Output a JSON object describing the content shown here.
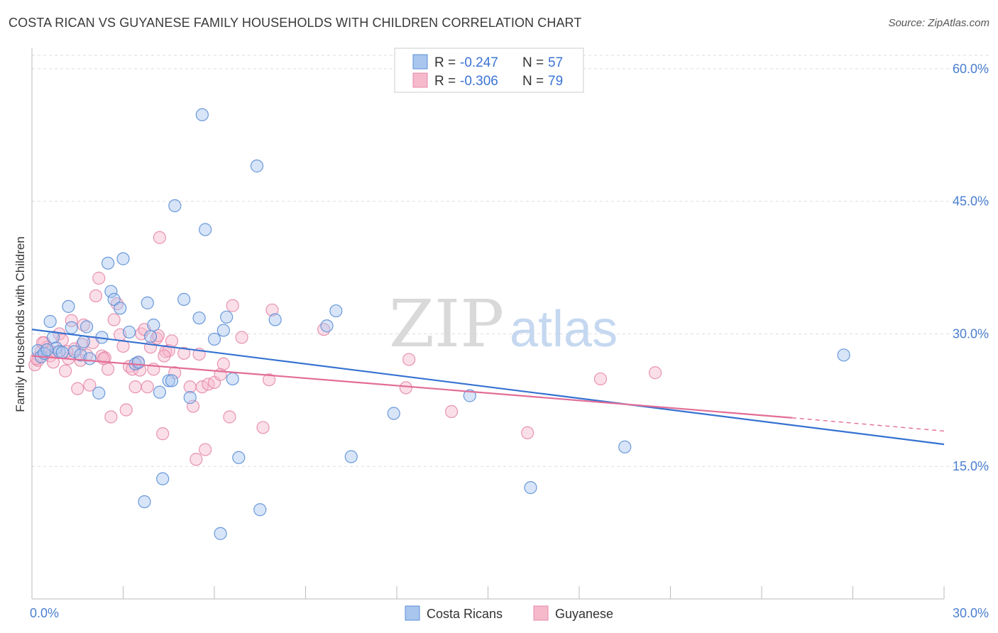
{
  "title": "COSTA RICAN VS GUYANESE FAMILY HOUSEHOLDS WITH CHILDREN CORRELATION CHART",
  "source": "Source: ZipAtlas.com",
  "watermark": {
    "zip": "ZIP",
    "atlas": "atlas"
  },
  "colors": {
    "blue_fill": "#a9c6ef",
    "blue_stroke": "#5b8fd6",
    "blue_line": "#3572d1",
    "pink_fill": "#f6b9cc",
    "pink_stroke": "#e48aa8",
    "pink_line": "#e26d96",
    "grid": "#dddddd",
    "tick_label": "#4a7fd0"
  },
  "legend": {
    "rows": [
      {
        "r_label": "R = ",
        "r_value": "-0.247",
        "n_label": "N = ",
        "n_value": "57"
      },
      {
        "r_label": "R = ",
        "r_value": "-0.306",
        "n_label": "N = ",
        "n_value": "79"
      }
    ]
  },
  "chart_data": {
    "type": "scatter",
    "xlabel": "",
    "ylabel": "Family Households with Children",
    "xlim": [
      0,
      30
    ],
    "ylim": [
      0,
      62
    ],
    "x_tick_labels": [
      "0.0%",
      "30.0%"
    ],
    "y_ticks": [
      15,
      30,
      45,
      60
    ],
    "y_tick_labels": [
      "15.0%",
      "30.0%",
      "45.0%",
      "60.0%"
    ],
    "grid": "horizontal dashed",
    "legend_placement": "top-center",
    "series": [
      {
        "name": "Costa Ricans",
        "points": [
          [
            0.2,
            28.1
          ],
          [
            0.3,
            27.4
          ],
          [
            0.4,
            27.8
          ],
          [
            0.6,
            31.4
          ],
          [
            0.7,
            29.6
          ],
          [
            0.8,
            28.4
          ],
          [
            0.9,
            28.0
          ],
          [
            1.2,
            33.1
          ],
          [
            1.3,
            30.7
          ],
          [
            1.4,
            28.0
          ],
          [
            1.6,
            27.6
          ],
          [
            1.7,
            29.1
          ],
          [
            1.8,
            30.8
          ],
          [
            1.9,
            27.2
          ],
          [
            2.2,
            23.3
          ],
          [
            2.3,
            29.6
          ],
          [
            2.5,
            38.0
          ],
          [
            2.6,
            34.8
          ],
          [
            2.7,
            33.9
          ],
          [
            2.9,
            32.9
          ],
          [
            3.0,
            38.5
          ],
          [
            3.2,
            30.2
          ],
          [
            3.4,
            26.6
          ],
          [
            3.5,
            26.8
          ],
          [
            3.7,
            11.0
          ],
          [
            3.8,
            33.5
          ],
          [
            3.9,
            29.7
          ],
          [
            4.0,
            31.0
          ],
          [
            4.2,
            23.4
          ],
          [
            4.3,
            13.6
          ],
          [
            4.5,
            24.7
          ],
          [
            4.6,
            24.7
          ],
          [
            4.7,
            44.5
          ],
          [
            5.0,
            33.9
          ],
          [
            5.2,
            22.8
          ],
          [
            5.5,
            31.8
          ],
          [
            5.6,
            54.8
          ],
          [
            5.7,
            41.8
          ],
          [
            6.0,
            29.4
          ],
          [
            6.2,
            7.4
          ],
          [
            6.3,
            30.4
          ],
          [
            6.4,
            31.9
          ],
          [
            6.6,
            24.9
          ],
          [
            6.8,
            16.0
          ],
          [
            7.4,
            49.0
          ],
          [
            7.5,
            10.1
          ],
          [
            8.0,
            31.6
          ],
          [
            9.7,
            30.9
          ],
          [
            10.0,
            32.6
          ],
          [
            10.5,
            16.1
          ],
          [
            11.9,
            21.0
          ],
          [
            14.4,
            23.0
          ],
          [
            16.4,
            12.6
          ],
          [
            19.5,
            17.2
          ],
          [
            26.7,
            27.6
          ],
          [
            0.5,
            28.2
          ],
          [
            1.0,
            27.9
          ]
        ],
        "trend": {
          "x": [
            0,
            30
          ],
          "y": [
            30.5,
            17.5
          ]
        }
      },
      {
        "name": "Guyanese",
        "points": [
          [
            0.1,
            26.5
          ],
          [
            0.2,
            27.0
          ],
          [
            0.3,
            28.0
          ],
          [
            0.4,
            29.0
          ],
          [
            0.5,
            28.5
          ],
          [
            0.6,
            27.5
          ],
          [
            0.7,
            26.8
          ],
          [
            0.8,
            27.9
          ],
          [
            0.9,
            30.0
          ],
          [
            1.0,
            29.3
          ],
          [
            1.1,
            25.8
          ],
          [
            1.2,
            27.2
          ],
          [
            1.3,
            31.5
          ],
          [
            1.4,
            28.3
          ],
          [
            1.5,
            23.8
          ],
          [
            1.6,
            27.0
          ],
          [
            1.7,
            31.0
          ],
          [
            1.8,
            27.6
          ],
          [
            1.9,
            24.2
          ],
          [
            2.0,
            29.0
          ],
          [
            2.1,
            34.3
          ],
          [
            2.2,
            36.3
          ],
          [
            2.3,
            27.5
          ],
          [
            2.4,
            27.3
          ],
          [
            2.5,
            26.0
          ],
          [
            2.6,
            20.6
          ],
          [
            2.7,
            31.6
          ],
          [
            2.8,
            33.4
          ],
          [
            2.9,
            29.9
          ],
          [
            3.0,
            28.6
          ],
          [
            3.1,
            21.4
          ],
          [
            3.2,
            26.3
          ],
          [
            3.3,
            26.0
          ],
          [
            3.4,
            24.0
          ],
          [
            3.5,
            26.7
          ],
          [
            3.6,
            30.0
          ],
          [
            3.7,
            30.5
          ],
          [
            3.8,
            24.0
          ],
          [
            3.9,
            28.5
          ],
          [
            4.0,
            26.0
          ],
          [
            4.1,
            29.5
          ],
          [
            4.2,
            40.9
          ],
          [
            4.3,
            18.7
          ],
          [
            4.4,
            28.0
          ],
          [
            4.5,
            28.1
          ],
          [
            4.6,
            29.2
          ],
          [
            4.7,
            25.6
          ],
          [
            5.0,
            27.8
          ],
          [
            5.2,
            24.0
          ],
          [
            5.3,
            21.8
          ],
          [
            5.4,
            15.8
          ],
          [
            5.5,
            27.7
          ],
          [
            5.6,
            24.0
          ],
          [
            5.7,
            16.9
          ],
          [
            5.8,
            24.3
          ],
          [
            6.0,
            24.5
          ],
          [
            6.2,
            25.4
          ],
          [
            6.3,
            26.6
          ],
          [
            6.5,
            20.6
          ],
          [
            6.6,
            33.2
          ],
          [
            6.9,
            29.6
          ],
          [
            7.6,
            19.4
          ],
          [
            7.8,
            24.8
          ],
          [
            7.9,
            32.7
          ],
          [
            9.6,
            30.5
          ],
          [
            12.4,
            27.1
          ],
          [
            12.3,
            23.9
          ],
          [
            13.8,
            21.2
          ],
          [
            16.3,
            18.8
          ],
          [
            18.7,
            24.9
          ],
          [
            20.5,
            25.6
          ],
          [
            0.15,
            27.2
          ],
          [
            0.35,
            29.0
          ],
          [
            1.15,
            28.0
          ],
          [
            1.65,
            28.8
          ],
          [
            2.35,
            27.2
          ],
          [
            3.55,
            25.9
          ],
          [
            4.15,
            29.8
          ],
          [
            4.35,
            27.5
          ]
        ],
        "trend": {
          "x": [
            0,
            25
          ],
          "y": [
            27.5,
            20.5
          ]
        },
        "trend_dashed_extension": {
          "x": [
            25,
            30
          ],
          "y": [
            20.5,
            19.0
          ]
        }
      }
    ]
  }
}
